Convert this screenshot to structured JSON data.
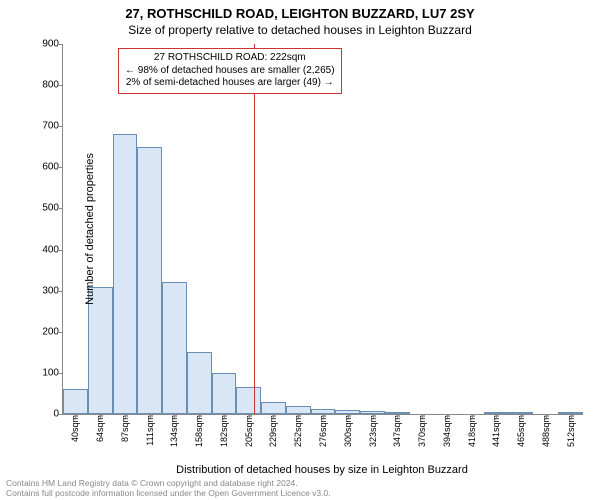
{
  "titles": {
    "line1": "27, ROTHSCHILD ROAD, LEIGHTON BUZZARD, LU7 2SY",
    "line2": "Size of property relative to detached houses in Leighton Buzzard"
  },
  "chart": {
    "type": "histogram",
    "ylabel": "Number of detached properties",
    "xlabel": "Distribution of detached houses by size in Leighton Buzzard",
    "ylim": [
      0,
      900
    ],
    "ytick_step": 100,
    "xtick_labels": [
      "40sqm",
      "64sqm",
      "87sqm",
      "111sqm",
      "134sqm",
      "158sqm",
      "182sqm",
      "205sqm",
      "229sqm",
      "252sqm",
      "276sqm",
      "300sqm",
      "323sqm",
      "347sqm",
      "370sqm",
      "394sqm",
      "418sqm",
      "441sqm",
      "465sqm",
      "488sqm",
      "512sqm"
    ],
    "bar_values": [
      60,
      310,
      680,
      650,
      320,
      150,
      100,
      65,
      30,
      20,
      12,
      10,
      8,
      6,
      0,
      0,
      0,
      3,
      3,
      0,
      3
    ],
    "bar_fill": "#d8e6f5",
    "bar_border": "#6a8fb5",
    "axis_color": "#888888",
    "background": "#ffffff",
    "reference_line": {
      "label_index": 8,
      "color": "#cc3333"
    },
    "annotation": {
      "lines": [
        "27 ROTHSCHILD ROAD: 222sqm",
        "← 98% of detached houses are smaller (2,265)",
        "2% of semi-detached houses are larger (49) →"
      ],
      "border_color": "#cc3333",
      "font_size": 10
    }
  },
  "footer": {
    "line1": "Contains HM Land Registry data © Crown copyright and database right 2024.",
    "line2": "Contains full postcode information licensed under the Open Government Licence v3.0."
  }
}
